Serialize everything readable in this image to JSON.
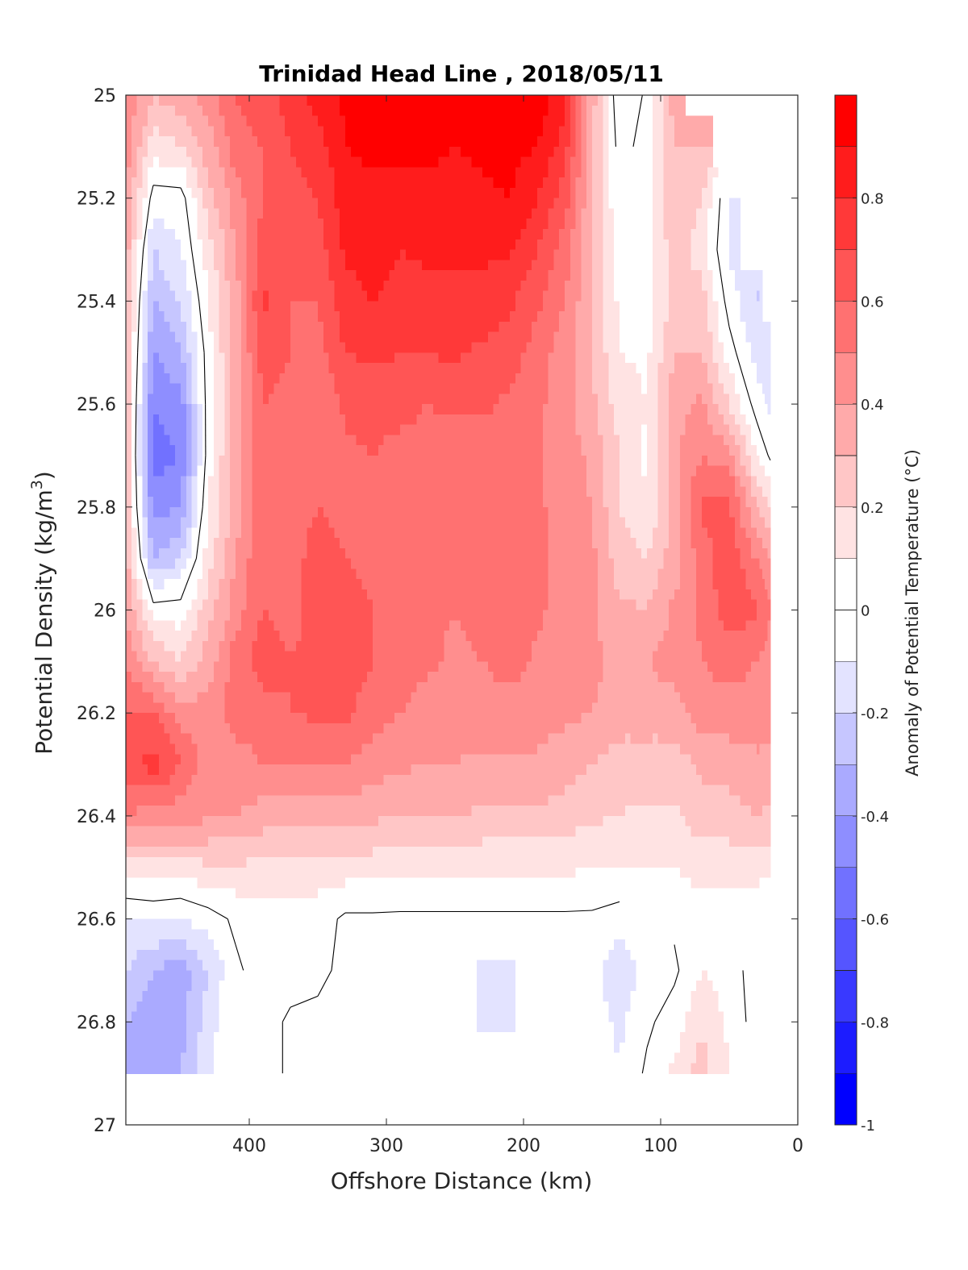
{
  "chart_data": {
    "type": "heatmap",
    "subtype": "filled-contour",
    "title": "Trinidad Head Line , 2018/05/11",
    "xlabel": "Offshore Distance (km)",
    "ylabel_main": "Potential Density (kg/m",
    "ylabel_sup": "3",
    "ylabel_end": ")",
    "xlim": [
      0,
      490
    ],
    "x_reversed": true,
    "ylim": [
      25,
      27
    ],
    "y_reversed": true,
    "xticks": [
      400,
      300,
      200,
      100,
      0
    ],
    "xtick_labels": [
      "400",
      "300",
      "200",
      "100",
      "0"
    ],
    "yticks": [
      25,
      25.2,
      25.4,
      25.6,
      25.8,
      26,
      26.2,
      26.4,
      26.6,
      26.8,
      27
    ],
    "ytick_labels": [
      "25",
      "25.2",
      "25.4",
      "25.6",
      "25.8",
      "26",
      "26.2",
      "26.4",
      "26.6",
      "26.8",
      "27"
    ],
    "x": [
      490,
      470,
      450,
      430,
      410,
      390,
      370,
      350,
      330,
      310,
      290,
      270,
      250,
      230,
      210,
      190,
      170,
      150,
      130,
      110,
      90,
      70,
      50,
      30,
      20
    ],
    "y": [
      25.0,
      25.1,
      25.2,
      25.3,
      25.4,
      25.5,
      25.6,
      25.7,
      25.8,
      25.9,
      26.0,
      26.1,
      26.2,
      26.3,
      26.4,
      26.5,
      26.6,
      26.7,
      26.8,
      26.9
    ],
    "z_layout": "z[x_index][y_index], null = no data",
    "z": [
      [
        0.5,
        0.45,
        0.4,
        0.35,
        0.3,
        0.3,
        0.3,
        0.3,
        0.3,
        0.35,
        0.4,
        0.5,
        0.6,
        0.65,
        0.5,
        0.15,
        -0.1,
        -0.2,
        -0.3,
        -0.3
      ],
      [
        0.3,
        0.15,
        -0.05,
        -0.2,
        -0.3,
        -0.4,
        -0.5,
        -0.55,
        -0.45,
        -0.3,
        0.05,
        0.3,
        0.6,
        0.75,
        0.45,
        0.15,
        -0.08,
        -0.3,
        -0.35,
        -0.35
      ],
      [
        0.35,
        0.2,
        -0.05,
        -0.1,
        -0.2,
        -0.3,
        -0.45,
        -0.5,
        -0.4,
        -0.2,
        0.05,
        0.2,
        0.45,
        0.6,
        0.45,
        0.15,
        -0.1,
        -0.35,
        -0.35,
        -0.3
      ],
      [
        0.45,
        0.35,
        0.25,
        0.15,
        0.1,
        0.05,
        0.05,
        0.05,
        0.1,
        0.15,
        0.25,
        0.35,
        0.45,
        0.45,
        0.42,
        0.18,
        -0.05,
        -0.2,
        -0.15,
        -0.12
      ],
      [
        0.6,
        0.55,
        0.45,
        0.4,
        0.35,
        0.35,
        0.35,
        0.35,
        0.35,
        0.4,
        0.45,
        0.55,
        0.55,
        0.45,
        0.4,
        0.18,
        0.02,
        -0.02,
        0.0,
        0.0
      ],
      [
        0.65,
        0.6,
        0.6,
        0.65,
        0.72,
        0.65,
        0.6,
        0.6,
        0.6,
        0.6,
        0.6,
        0.65,
        0.55,
        0.5,
        0.35,
        0.18,
        0.05,
        0.05,
        0.05,
        0.05
      ],
      [
        0.75,
        0.7,
        0.65,
        0.6,
        0.6,
        0.6,
        0.55,
        0.55,
        0.55,
        0.55,
        0.55,
        0.6,
        0.6,
        0.5,
        0.35,
        0.15,
        0.05,
        0.05,
        -0.02,
        -0.02
      ],
      [
        0.85,
        0.75,
        0.7,
        0.65,
        0.6,
        0.55,
        0.5,
        0.55,
        0.6,
        0.65,
        0.65,
        0.65,
        0.62,
        0.5,
        0.35,
        0.15,
        0.05,
        0.02,
        -0.02,
        -0.02
      ],
      [
        0.92,
        0.9,
        0.85,
        0.82,
        0.75,
        0.7,
        0.62,
        0.58,
        0.55,
        0.6,
        0.65,
        0.65,
        0.62,
        0.5,
        0.35,
        0.15,
        -0.02,
        -0.02,
        -0.02,
        -0.02
      ],
      [
        0.95,
        0.92,
        0.88,
        0.85,
        0.8,
        0.72,
        0.65,
        0.6,
        0.55,
        0.55,
        0.6,
        0.6,
        0.55,
        0.45,
        0.32,
        0.15,
        -0.02,
        -0.03,
        -0.02,
        -0.02
      ],
      [
        0.95,
        0.92,
        0.86,
        0.8,
        0.75,
        0.7,
        0.65,
        0.55,
        0.55,
        0.55,
        0.55,
        0.55,
        0.5,
        0.42,
        0.3,
        0.12,
        -0.02,
        -0.03,
        -0.02,
        -0.03
      ],
      [
        0.95,
        0.92,
        0.88,
        0.82,
        0.76,
        0.7,
        0.6,
        0.55,
        0.52,
        0.52,
        0.52,
        0.52,
        0.45,
        0.4,
        0.3,
        0.12,
        -0.02,
        -0.08,
        -0.03,
        -0.03
      ],
      [
        0.95,
        0.9,
        0.85,
        0.82,
        0.78,
        0.72,
        0.62,
        0.55,
        0.52,
        0.52,
        0.5,
        0.48,
        0.45,
        0.4,
        0.3,
        0.12,
        -0.02,
        -0.03,
        -0.03,
        -0.03
      ],
      [
        0.96,
        0.92,
        0.88,
        0.82,
        0.76,
        0.68,
        0.62,
        0.55,
        0.52,
        0.52,
        0.52,
        0.5,
        0.45,
        0.38,
        0.28,
        0.12,
        -0.02,
        -0.12,
        -0.12,
        -0.05
      ],
      [
        0.96,
        0.94,
        0.9,
        0.82,
        0.72,
        0.65,
        0.58,
        0.55,
        0.55,
        0.58,
        0.6,
        0.55,
        0.45,
        0.38,
        0.28,
        0.12,
        -0.02,
        -0.12,
        -0.12,
        -0.05
      ],
      [
        0.95,
        0.9,
        0.8,
        0.7,
        0.62,
        0.55,
        0.52,
        0.52,
        0.52,
        0.55,
        0.52,
        0.48,
        0.45,
        0.38,
        0.28,
        0.12,
        -0.02,
        -0.05,
        -0.03,
        -0.03
      ],
      [
        0.85,
        0.75,
        0.65,
        0.55,
        0.5,
        0.45,
        0.45,
        0.45,
        0.45,
        0.45,
        0.45,
        0.5,
        0.42,
        0.35,
        0.25,
        0.12,
        -0.02,
        -0.02,
        -0.02,
        -0.02
      ],
      [
        0.35,
        0.32,
        0.3,
        0.3,
        0.3,
        0.3,
        0.32,
        0.38,
        0.4,
        0.42,
        0.42,
        0.42,
        0.4,
        0.3,
        0.22,
        0.1,
        -0.02,
        -0.05,
        -0.05,
        -0.02
      ],
      [
        -0.1,
        -0.05,
        0.0,
        0.05,
        0.08,
        0.1,
        0.15,
        0.2,
        0.2,
        0.25,
        0.32,
        0.38,
        0.35,
        0.25,
        0.2,
        0.1,
        -0.05,
        -0.2,
        -0.12,
        -0.1
      ],
      [
        0.02,
        0.05,
        0.05,
        0.05,
        0.05,
        0.08,
        0.1,
        0.08,
        0.1,
        0.2,
        0.3,
        0.4,
        0.35,
        0.25,
        0.18,
        0.1,
        0.0,
        -0.05,
        -0.02,
        0.02
      ],
      [
        0.35,
        0.3,
        0.3,
        0.25,
        0.22,
        0.3,
        0.35,
        0.38,
        0.35,
        0.35,
        0.42,
        0.45,
        0.35,
        0.25,
        0.18,
        0.1,
        0.02,
        -0.02,
        0.05,
        0.12
      ],
      [
        null,
        0.3,
        0.2,
        0.15,
        0.25,
        0.3,
        0.42,
        0.5,
        0.62,
        0.55,
        0.52,
        0.5,
        0.45,
        0.32,
        0.25,
        0.15,
        0.02,
        0.1,
        0.18,
        0.25
      ],
      [
        null,
        null,
        -0.1,
        -0.12,
        -0.05,
        0.05,
        0.2,
        0.45,
        0.62,
        0.68,
        0.65,
        0.55,
        0.45,
        0.35,
        0.25,
        0.15,
        0.02,
        0.05,
        0.08,
        0.1
      ],
      [
        null,
        null,
        null,
        null,
        -0.2,
        -0.15,
        -0.05,
        0.1,
        0.3,
        0.5,
        0.62,
        0.5,
        0.45,
        0.38,
        0.3,
        0.15,
        0.0,
        -0.05,
        -0.05,
        0.0
      ],
      [
        null,
        null,
        null,
        null,
        null,
        -0.2,
        -0.12,
        -0.02,
        0.2,
        0.4,
        0.5,
        0.45,
        0.42,
        0.38,
        0.28,
        0.12,
        -0.02,
        -0.05,
        -0.05,
        -0.02
      ]
    ],
    "contour_line_level": 0,
    "colorbar": {
      "label": "Anomaly of Potential Temperature (°C)",
      "range": [
        -1,
        1
      ],
      "level_step": 0.1,
      "ticks": [
        -1,
        -0.8,
        -0.6,
        -0.4,
        -0.2,
        0,
        0.2,
        0.4,
        0.6,
        0.8
      ],
      "tick_labels": [
        "-1",
        "-0.8",
        "-0.6",
        "-0.4",
        "-0.2",
        "0",
        "0.2",
        "0.4",
        "0.6",
        "0.8"
      ],
      "colormap": "blue-white-red",
      "low_color": "#0000ff",
      "mid_color": "#ffffff",
      "high_color": "#ff0000"
    },
    "grid": false
  }
}
